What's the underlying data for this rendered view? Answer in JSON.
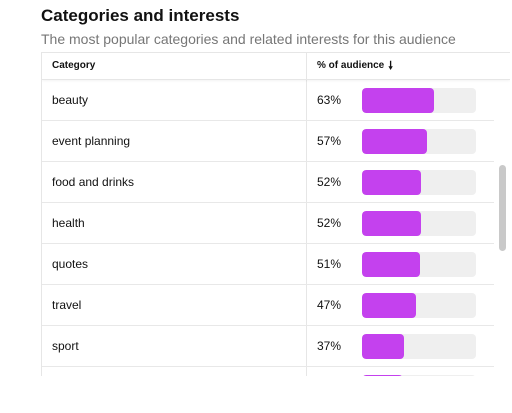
{
  "section": {
    "title": "Categories and interests",
    "subtitle": "The most popular categories and related interests for this audience"
  },
  "table": {
    "columns": {
      "category": "Category",
      "percent": "% of audience"
    },
    "sort_icon": "arrow-down-icon",
    "rows": [
      {
        "category": "beauty",
        "percent_label": "63%",
        "percent": 63
      },
      {
        "category": "event planning",
        "percent_label": "57%",
        "percent": 57
      },
      {
        "category": "food and drinks",
        "percent_label": "52%",
        "percent": 52
      },
      {
        "category": "health",
        "percent_label": "52%",
        "percent": 52
      },
      {
        "category": "quotes",
        "percent_label": "51%",
        "percent": 51
      },
      {
        "category": "travel",
        "percent_label": "47%",
        "percent": 47
      },
      {
        "category": "sport",
        "percent_label": "37%",
        "percent": 37
      },
      {
        "category": "",
        "percent_label": "",
        "percent": 36
      }
    ]
  },
  "colors": {
    "bar_fill": "#c441ee",
    "bar_track": "#efefef"
  }
}
